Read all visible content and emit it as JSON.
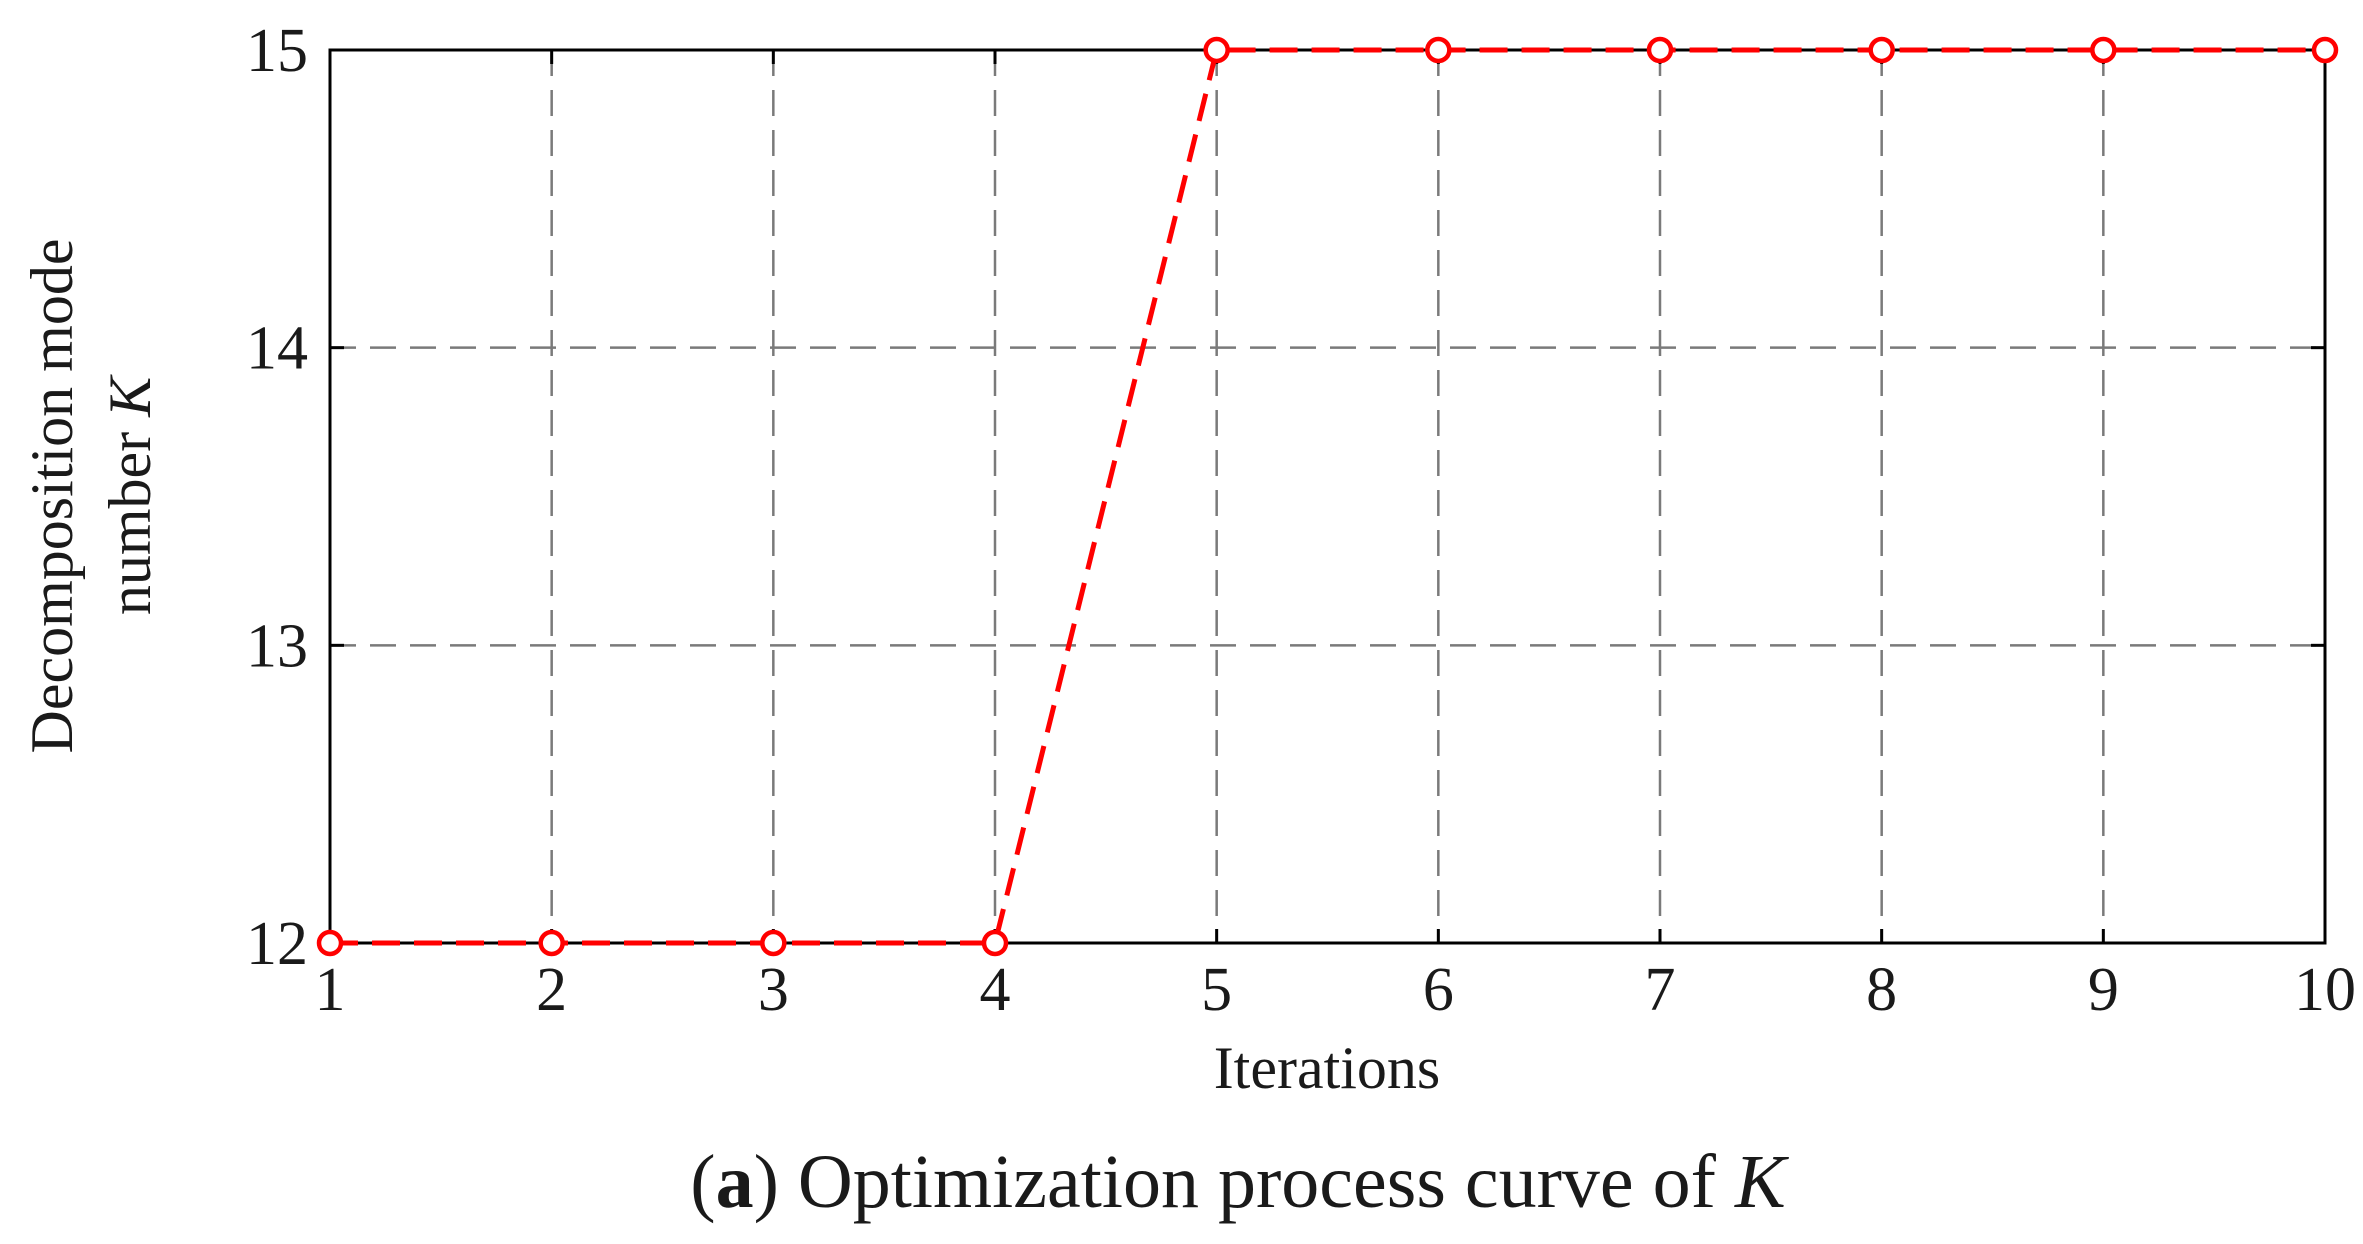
{
  "chart_data": {
    "type": "line",
    "x": [
      1,
      2,
      3,
      4,
      5,
      6,
      7,
      8,
      9,
      10
    ],
    "series": [
      {
        "values": [
          12,
          12,
          12,
          12,
          15,
          15,
          15,
          15,
          15,
          15
        ],
        "color": "#ff0000",
        "line_style": "dashed",
        "marker": "open-circle"
      }
    ],
    "xlabel": "Iterations",
    "ylabel_line1": "Decomposition mode",
    "ylabel_line2_prefix": "number ",
    "ylabel_symbol": "K",
    "xlim": [
      1,
      10
    ],
    "ylim": [
      12,
      15
    ],
    "xticks": [
      "1",
      "2",
      "3",
      "4",
      "5",
      "6",
      "7",
      "8",
      "9",
      "10"
    ],
    "yticks": [
      "12",
      "13",
      "14",
      "15"
    ],
    "grid": true,
    "caption": {
      "paren_open": "(",
      "letter": "a",
      "paren_close": ")",
      "text": " Optimization process curve of ",
      "symbol": "K"
    }
  }
}
